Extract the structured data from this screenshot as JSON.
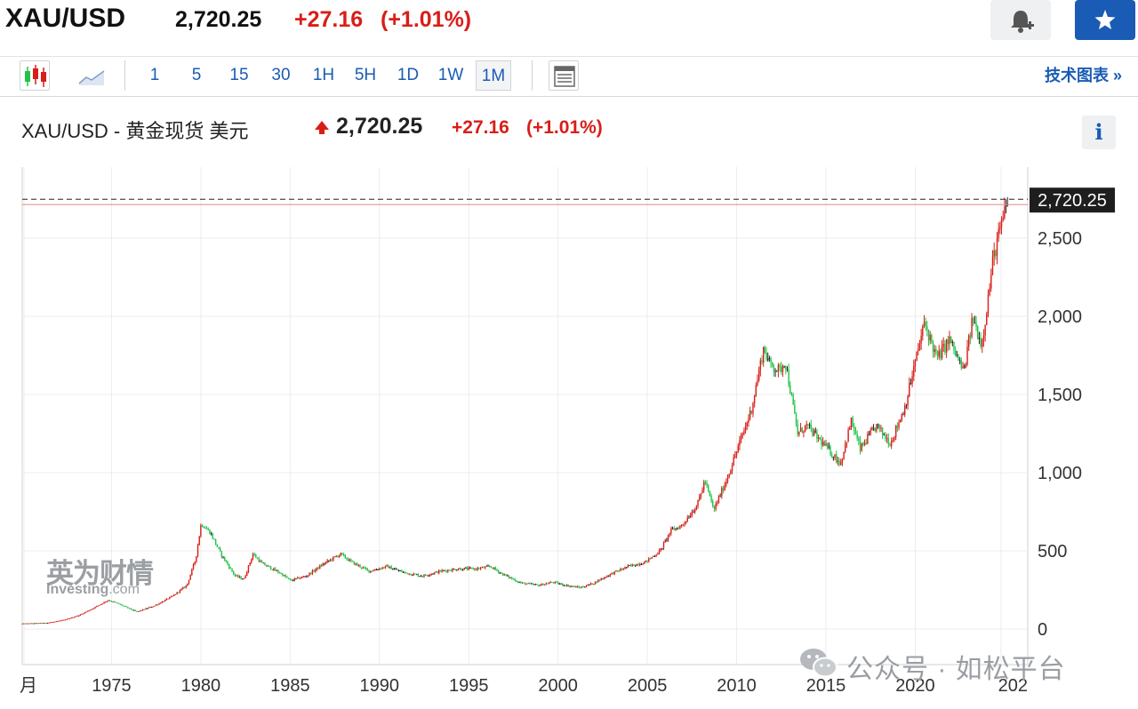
{
  "header": {
    "symbol": "XAU/USD",
    "price": "2,720.25",
    "change": "+27.16",
    "change_pct": "(+1.01%)",
    "alert_icon": "bell-plus-icon",
    "watchlist_icon": "star-icon"
  },
  "toolbar": {
    "candle_icon": "candlestick-icon",
    "line_icon": "line-chart-icon",
    "timeframes": [
      "1",
      "5",
      "15",
      "30",
      "1H",
      "5H",
      "1D",
      "1W",
      "1M"
    ],
    "active_timeframe": "1M",
    "table_icon": "data-table-icon",
    "tech_chart_label": "技术图表 »"
  },
  "instrument": {
    "title": "XAU/USD - 黄金现货 美元",
    "price": "2,720.25",
    "change": "+27.16",
    "change_pct": "(+1.01%)",
    "info_label": "i"
  },
  "watermark": {
    "brand_cn": "英为财情",
    "brand_en": "Investing",
    "brand_en_suffix": ".com"
  },
  "footer_watermark": {
    "text": "公众号 · 如松平台",
    "icon": "wechat-icon"
  },
  "colors": {
    "up": "#d91e18",
    "down": "#22c34a",
    "flat": "#222222",
    "accent": "#1a5bb5"
  },
  "chart_data": {
    "type": "candlestick",
    "interval": "1M",
    "x_ticks": [
      "月",
      "1975",
      "1980",
      "1985",
      "1990",
      "1995",
      "2000",
      "2005",
      "2010",
      "2015",
      "2020",
      "202"
    ],
    "x_tick_years": [
      1970.1,
      1975,
      1980,
      1985,
      1990,
      1995,
      2000,
      2005,
      2010,
      2015,
      2020,
      2024.8
    ],
    "y_ticks": [
      "0",
      "500",
      "1,000",
      "1,500",
      "2,000",
      "2,500"
    ],
    "y_tick_values": [
      0,
      500,
      1000,
      1500,
      2000,
      2500
    ],
    "ylim": [
      0,
      2800
    ],
    "xlim": [
      1970,
      2026.3
    ],
    "last_price_label": "2,720.25",
    "last_price": 2720.25,
    "grid": true,
    "price_path": [
      [
        1970.0,
        35
      ],
      [
        1971.5,
        40
      ],
      [
        1972.5,
        60
      ],
      [
        1973.3,
        90
      ],
      [
        1974.0,
        130
      ],
      [
        1974.9,
        185
      ],
      [
        1975.5,
        160
      ],
      [
        1976.5,
        110
      ],
      [
        1977.5,
        150
      ],
      [
        1978.5,
        210
      ],
      [
        1979.3,
        280
      ],
      [
        1979.8,
        450
      ],
      [
        1980.1,
        675
      ],
      [
        1980.6,
        620
      ],
      [
        1981.2,
        480
      ],
      [
        1982.0,
        340
      ],
      [
        1982.5,
        320
      ],
      [
        1983.0,
        480
      ],
      [
        1983.5,
        420
      ],
      [
        1984.5,
        360
      ],
      [
        1985.1,
        310
      ],
      [
        1986.0,
        340
      ],
      [
        1987.0,
        420
      ],
      [
        1987.9,
        480
      ],
      [
        1988.5,
        430
      ],
      [
        1989.5,
        370
      ],
      [
        1990.5,
        400
      ],
      [
        1991.5,
        360
      ],
      [
        1992.5,
        340
      ],
      [
        1993.5,
        370
      ],
      [
        1994.5,
        385
      ],
      [
        1995.5,
        385
      ],
      [
        1996.3,
        400
      ],
      [
        1997.0,
        350
      ],
      [
        1998.0,
        295
      ],
      [
        1999.0,
        280
      ],
      [
        1999.8,
        300
      ],
      [
        2000.5,
        280
      ],
      [
        2001.3,
        265
      ],
      [
        2002.0,
        290
      ],
      [
        2003.0,
        350
      ],
      [
        2004.0,
        400
      ],
      [
        2005.0,
        430
      ],
      [
        2005.8,
        500
      ],
      [
        2006.4,
        630
      ],
      [
        2007.0,
        660
      ],
      [
        2007.9,
        800
      ],
      [
        2008.3,
        950
      ],
      [
        2008.8,
        760
      ],
      [
        2009.5,
        950
      ],
      [
        2010.0,
        1110
      ],
      [
        2010.9,
        1400
      ],
      [
        2011.6,
        1800
      ],
      [
        2011.9,
        1700
      ],
      [
        2012.5,
        1650
      ],
      [
        2012.8,
        1720
      ],
      [
        2013.5,
        1250
      ],
      [
        2014.0,
        1300
      ],
      [
        2014.8,
        1200
      ],
      [
        2015.9,
        1060
      ],
      [
        2016.5,
        1330
      ],
      [
        2017.0,
        1150
      ],
      [
        2017.9,
        1300
      ],
      [
        2018.7,
        1190
      ],
      [
        2019.5,
        1420
      ],
      [
        2020.6,
        1960
      ],
      [
        2021.3,
        1730
      ],
      [
        2022.0,
        1850
      ],
      [
        2022.8,
        1640
      ],
      [
        2023.3,
        1990
      ],
      [
        2023.8,
        1820
      ],
      [
        2024.1,
        2060
      ],
      [
        2024.4,
        2330
      ],
      [
        2024.6,
        2450
      ],
      [
        2025.0,
        2620
      ],
      [
        2025.2,
        2720.25
      ]
    ]
  }
}
